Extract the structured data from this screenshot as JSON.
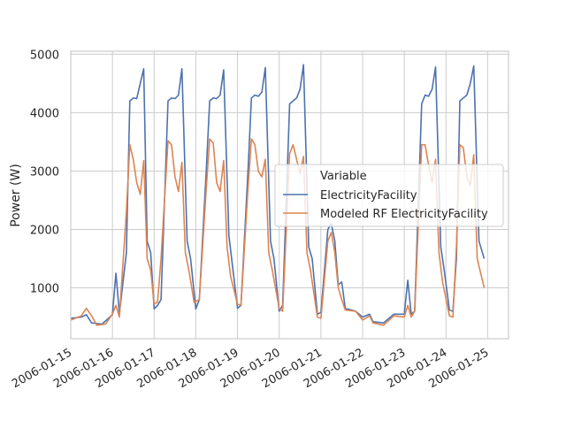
{
  "chart_data": {
    "type": "line",
    "ylabel": "Power (W)",
    "xlabel": "",
    "ylim": [
      130,
      5050
    ],
    "xlim": [
      "2006-01-15 00:00",
      "2006-01-25 12:00"
    ],
    "yticks": [
      1000,
      2000,
      3000,
      4000,
      5000
    ],
    "xticks": [
      "2006-01-15",
      "2006-01-16",
      "2006-01-17",
      "2006-01-18",
      "2006-01-19",
      "2006-01-20",
      "2006-01-21",
      "2006-01-22",
      "2006-01-23",
      "2006-01-24",
      "2006-01-25"
    ],
    "grid": true,
    "legend": {
      "title": "Variable",
      "placement": "center-right"
    },
    "series": [
      {
        "name": "ElectricityFacility",
        "color": "#4c72b0",
        "points": [
          [
            "2006-01-15 00:00",
            480
          ],
          [
            "2006-01-15 06:00",
            500
          ],
          [
            "2006-01-15 09:00",
            540
          ],
          [
            "2006-01-15 12:00",
            400
          ],
          [
            "2006-01-15 18:00",
            380
          ],
          [
            "2006-01-16 00:00",
            540
          ],
          [
            "2006-01-16 02:00",
            1250
          ],
          [
            "2006-01-16 04:00",
            560
          ],
          [
            "2006-01-16 08:00",
            1600
          ],
          [
            "2006-01-16 10:00",
            4200
          ],
          [
            "2006-01-16 12:00",
            4250
          ],
          [
            "2006-01-16 14:00",
            4240
          ],
          [
            "2006-01-16 16:00",
            4500
          ],
          [
            "2006-01-16 18:00",
            4750
          ],
          [
            "2006-01-16 20:00",
            1800
          ],
          [
            "2006-01-16 22:00",
            1600
          ],
          [
            "2006-01-17 00:00",
            640
          ],
          [
            "2006-01-17 02:00",
            700
          ],
          [
            "2006-01-17 04:00",
            800
          ],
          [
            "2006-01-17 08:00",
            4200
          ],
          [
            "2006-01-17 10:00",
            4250
          ],
          [
            "2006-01-17 12:00",
            4240
          ],
          [
            "2006-01-17 14:00",
            4300
          ],
          [
            "2006-01-17 16:00",
            4750
          ],
          [
            "2006-01-17 19:00",
            1800
          ],
          [
            "2006-01-17 21:00",
            1500
          ],
          [
            "2006-01-18 00:00",
            640
          ],
          [
            "2006-01-18 02:00",
            800
          ],
          [
            "2006-01-18 06:00",
            3000
          ],
          [
            "2006-01-18 08:00",
            4200
          ],
          [
            "2006-01-18 10:00",
            4250
          ],
          [
            "2006-01-18 12:00",
            4240
          ],
          [
            "2006-01-18 14:00",
            4300
          ],
          [
            "2006-01-18 16:00",
            4730
          ],
          [
            "2006-01-18 19:00",
            1900
          ],
          [
            "2006-01-18 21:00",
            1400
          ],
          [
            "2006-01-19 00:00",
            650
          ],
          [
            "2006-01-19 02:00",
            700
          ],
          [
            "2006-01-19 06:00",
            3000
          ],
          [
            "2006-01-19 08:00",
            4250
          ],
          [
            "2006-01-19 10:00",
            4300
          ],
          [
            "2006-01-19 12:00",
            4280
          ],
          [
            "2006-01-19 14:00",
            4350
          ],
          [
            "2006-01-19 16:00",
            4770
          ],
          [
            "2006-01-19 19:00",
            1800
          ],
          [
            "2006-01-19 21:00",
            1500
          ],
          [
            "2006-01-20 00:00",
            600
          ],
          [
            "2006-01-20 02:00",
            700
          ],
          [
            "2006-01-20 06:00",
            4150
          ],
          [
            "2006-01-20 08:00",
            4200
          ],
          [
            "2006-01-20 10:00",
            4250
          ],
          [
            "2006-01-20 12:00",
            4400
          ],
          [
            "2006-01-20 14:00",
            4820
          ],
          [
            "2006-01-20 17:00",
            1700
          ],
          [
            "2006-01-20 19:00",
            1500
          ],
          [
            "2006-01-20 22:00",
            550
          ],
          [
            "2006-01-21 00:00",
            580
          ],
          [
            "2006-01-21 04:00",
            2000
          ],
          [
            "2006-01-21 06:00",
            2100
          ],
          [
            "2006-01-21 08:00",
            1800
          ],
          [
            "2006-01-21 10:00",
            1050
          ],
          [
            "2006-01-21 12:00",
            1100
          ],
          [
            "2006-01-21 14:00",
            650
          ],
          [
            "2006-01-21 20:00",
            600
          ],
          [
            "2006-01-22 00:00",
            500
          ],
          [
            "2006-01-22 04:00",
            550
          ],
          [
            "2006-01-22 06:00",
            420
          ],
          [
            "2006-01-22 12:00",
            400
          ],
          [
            "2006-01-22 18:00",
            550
          ],
          [
            "2006-01-23 00:00",
            550
          ],
          [
            "2006-01-23 02:00",
            1130
          ],
          [
            "2006-01-23 04:00",
            550
          ],
          [
            "2006-01-23 06:00",
            600
          ],
          [
            "2006-01-23 10:00",
            4150
          ],
          [
            "2006-01-23 12:00",
            4300
          ],
          [
            "2006-01-23 14:00",
            4280
          ],
          [
            "2006-01-23 16:00",
            4400
          ],
          [
            "2006-01-23 18:00",
            4780
          ],
          [
            "2006-01-23 21:00",
            1700
          ],
          [
            "2006-01-23 23:00",
            1300
          ],
          [
            "2006-01-24 02:00",
            620
          ],
          [
            "2006-01-24 04:00",
            600
          ],
          [
            "2006-01-24 06:00",
            1500
          ],
          [
            "2006-01-24 08:00",
            4200
          ],
          [
            "2006-01-24 10:00",
            4250
          ],
          [
            "2006-01-24 12:00",
            4300
          ],
          [
            "2006-01-24 14:00",
            4500
          ],
          [
            "2006-01-24 16:00",
            4800
          ],
          [
            "2006-01-24 19:00",
            1800
          ],
          [
            "2006-01-24 22:00",
            1500
          ]
        ]
      },
      {
        "name": "Modeled RF ElectricityFacility",
        "color": "#dd8452",
        "points": [
          [
            "2006-01-15 00:00",
            450
          ],
          [
            "2006-01-15 06:00",
            520
          ],
          [
            "2006-01-15 09:00",
            650
          ],
          [
            "2006-01-15 12:00",
            520
          ],
          [
            "2006-01-15 15:00",
            360
          ],
          [
            "2006-01-15 20:00",
            380
          ],
          [
            "2006-01-16 00:00",
            550
          ],
          [
            "2006-01-16 02:00",
            700
          ],
          [
            "2006-01-16 04:00",
            500
          ],
          [
            "2006-01-16 08:00",
            2300
          ],
          [
            "2006-01-16 10:00",
            3450
          ],
          [
            "2006-01-16 12:00",
            3200
          ],
          [
            "2006-01-16 14:00",
            2800
          ],
          [
            "2006-01-16 16:00",
            2600
          ],
          [
            "2006-01-16 18:00",
            3180
          ],
          [
            "2006-01-16 20:00",
            1500
          ],
          [
            "2006-01-16 22:00",
            1300
          ],
          [
            "2006-01-17 00:00",
            720
          ],
          [
            "2006-01-17 02:00",
            760
          ],
          [
            "2006-01-17 04:00",
            1500
          ],
          [
            "2006-01-17 08:00",
            3520
          ],
          [
            "2006-01-17 10:00",
            3450
          ],
          [
            "2006-01-17 12:00",
            2900
          ],
          [
            "2006-01-17 14:00",
            2650
          ],
          [
            "2006-01-17 16:00",
            3150
          ],
          [
            "2006-01-17 18:00",
            1600
          ],
          [
            "2006-01-17 20:00",
            1300
          ],
          [
            "2006-01-17 23:00",
            750
          ],
          [
            "2006-01-18 02:00",
            800
          ],
          [
            "2006-01-18 06:00",
            2700
          ],
          [
            "2006-01-18 08:00",
            3550
          ],
          [
            "2006-01-18 10:00",
            3480
          ],
          [
            "2006-01-18 12:00",
            2800
          ],
          [
            "2006-01-18 14:00",
            2650
          ],
          [
            "2006-01-18 16:00",
            3180
          ],
          [
            "2006-01-18 18:00",
            1700
          ],
          [
            "2006-01-18 20:00",
            1200
          ],
          [
            "2006-01-19 00:00",
            720
          ],
          [
            "2006-01-19 02:00",
            700
          ],
          [
            "2006-01-19 06:00",
            2700
          ],
          [
            "2006-01-19 08:00",
            3550
          ],
          [
            "2006-01-19 10:00",
            3450
          ],
          [
            "2006-01-19 12:00",
            3000
          ],
          [
            "2006-01-19 14:00",
            2900
          ],
          [
            "2006-01-19 16:00",
            3200
          ],
          [
            "2006-01-19 18:00",
            1600
          ],
          [
            "2006-01-19 20:00",
            1300
          ],
          [
            "2006-01-20 00:00",
            650
          ],
          [
            "2006-01-20 02:00",
            600
          ],
          [
            "2006-01-20 06:00",
            3300
          ],
          [
            "2006-01-20 08:00",
            3450
          ],
          [
            "2006-01-20 10:00",
            3200
          ],
          [
            "2006-01-20 12:00",
            2950
          ],
          [
            "2006-01-20 14:00",
            3250
          ],
          [
            "2006-01-20 16:00",
            1600
          ],
          [
            "2006-01-20 18:00",
            1300
          ],
          [
            "2006-01-20 22:00",
            500
          ],
          [
            "2006-01-21 00:00",
            480
          ],
          [
            "2006-01-21 04:00",
            1800
          ],
          [
            "2006-01-21 06:00",
            1950
          ],
          [
            "2006-01-21 08:00",
            1600
          ],
          [
            "2006-01-21 10:00",
            1000
          ],
          [
            "2006-01-21 12:00",
            800
          ],
          [
            "2006-01-21 14:00",
            620
          ],
          [
            "2006-01-21 20:00",
            600
          ],
          [
            "2006-01-22 00:00",
            450
          ],
          [
            "2006-01-22 04:00",
            520
          ],
          [
            "2006-01-22 06:00",
            400
          ],
          [
            "2006-01-22 12:00",
            360
          ],
          [
            "2006-01-22 18:00",
            520
          ],
          [
            "2006-01-23 00:00",
            500
          ],
          [
            "2006-01-23 02:00",
            700
          ],
          [
            "2006-01-23 04:00",
            500
          ],
          [
            "2006-01-23 06:00",
            600
          ],
          [
            "2006-01-23 10:00",
            3450
          ],
          [
            "2006-01-23 12:00",
            3450
          ],
          [
            "2006-01-23 14:00",
            3100
          ],
          [
            "2006-01-23 16:00",
            2800
          ],
          [
            "2006-01-23 18:00",
            3200
          ],
          [
            "2006-01-23 20:00",
            1600
          ],
          [
            "2006-01-23 22:00",
            1100
          ],
          [
            "2006-01-24 02:00",
            520
          ],
          [
            "2006-01-24 04:00",
            500
          ],
          [
            "2006-01-24 06:00",
            1700
          ],
          [
            "2006-01-24 08:00",
            3450
          ],
          [
            "2006-01-24 10:00",
            3400
          ],
          [
            "2006-01-24 12:00",
            2900
          ],
          [
            "2006-01-24 14:00",
            2750
          ],
          [
            "2006-01-24 16:00",
            3280
          ],
          [
            "2006-01-24 18:00",
            1500
          ],
          [
            "2006-01-24 22:00",
            1000
          ]
        ]
      }
    ]
  }
}
